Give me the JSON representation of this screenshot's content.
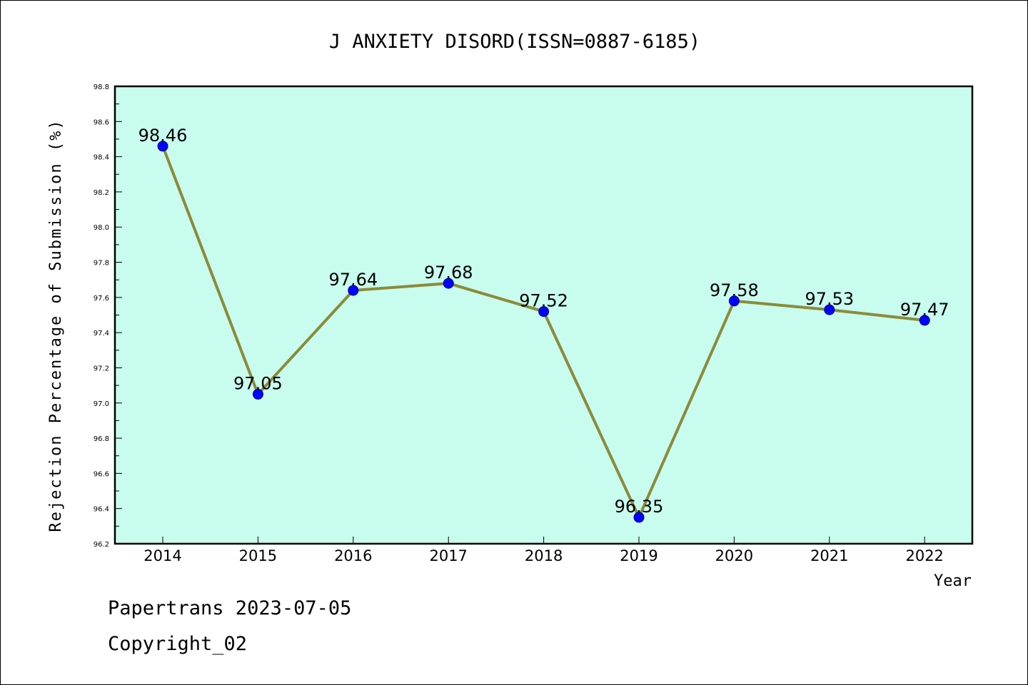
{
  "chart_data": {
    "type": "line",
    "title": "J ANXIETY DISORD(ISSN=0887-6185)",
    "xlabel": "Year",
    "ylabel": "Rejection Percentage of Submission (%)",
    "categories": [
      "2014",
      "2015",
      "2016",
      "2017",
      "2018",
      "2019",
      "2020",
      "2021",
      "2022"
    ],
    "series": [
      {
        "values": [
          98.46,
          97.05,
          97.64,
          97.68,
          97.52,
          96.35,
          97.58,
          97.53,
          97.47
        ],
        "labels": [
          "98.46",
          "97.05",
          "97.64",
          "97.68",
          "97.52",
          "96.35",
          "97.58",
          "97.53",
          "97.47"
        ]
      }
    ],
    "ylim": [
      96.2,
      98.8
    ],
    "yticks": [
      "96.2",
      "96.4",
      "96.6",
      "96.8",
      "97.0",
      "97.2",
      "97.4",
      "97.6",
      "97.8",
      "98.0",
      "98.2",
      "98.4",
      "98.6",
      "98.8"
    ],
    "grid": false,
    "colors": {
      "plot_background": "#c8fcee",
      "line": "#8b8b3a",
      "marker": "#0000ff"
    }
  },
  "footer": {
    "line1": "Papertrans 2023-07-05",
    "line2": "Copyright_02"
  }
}
